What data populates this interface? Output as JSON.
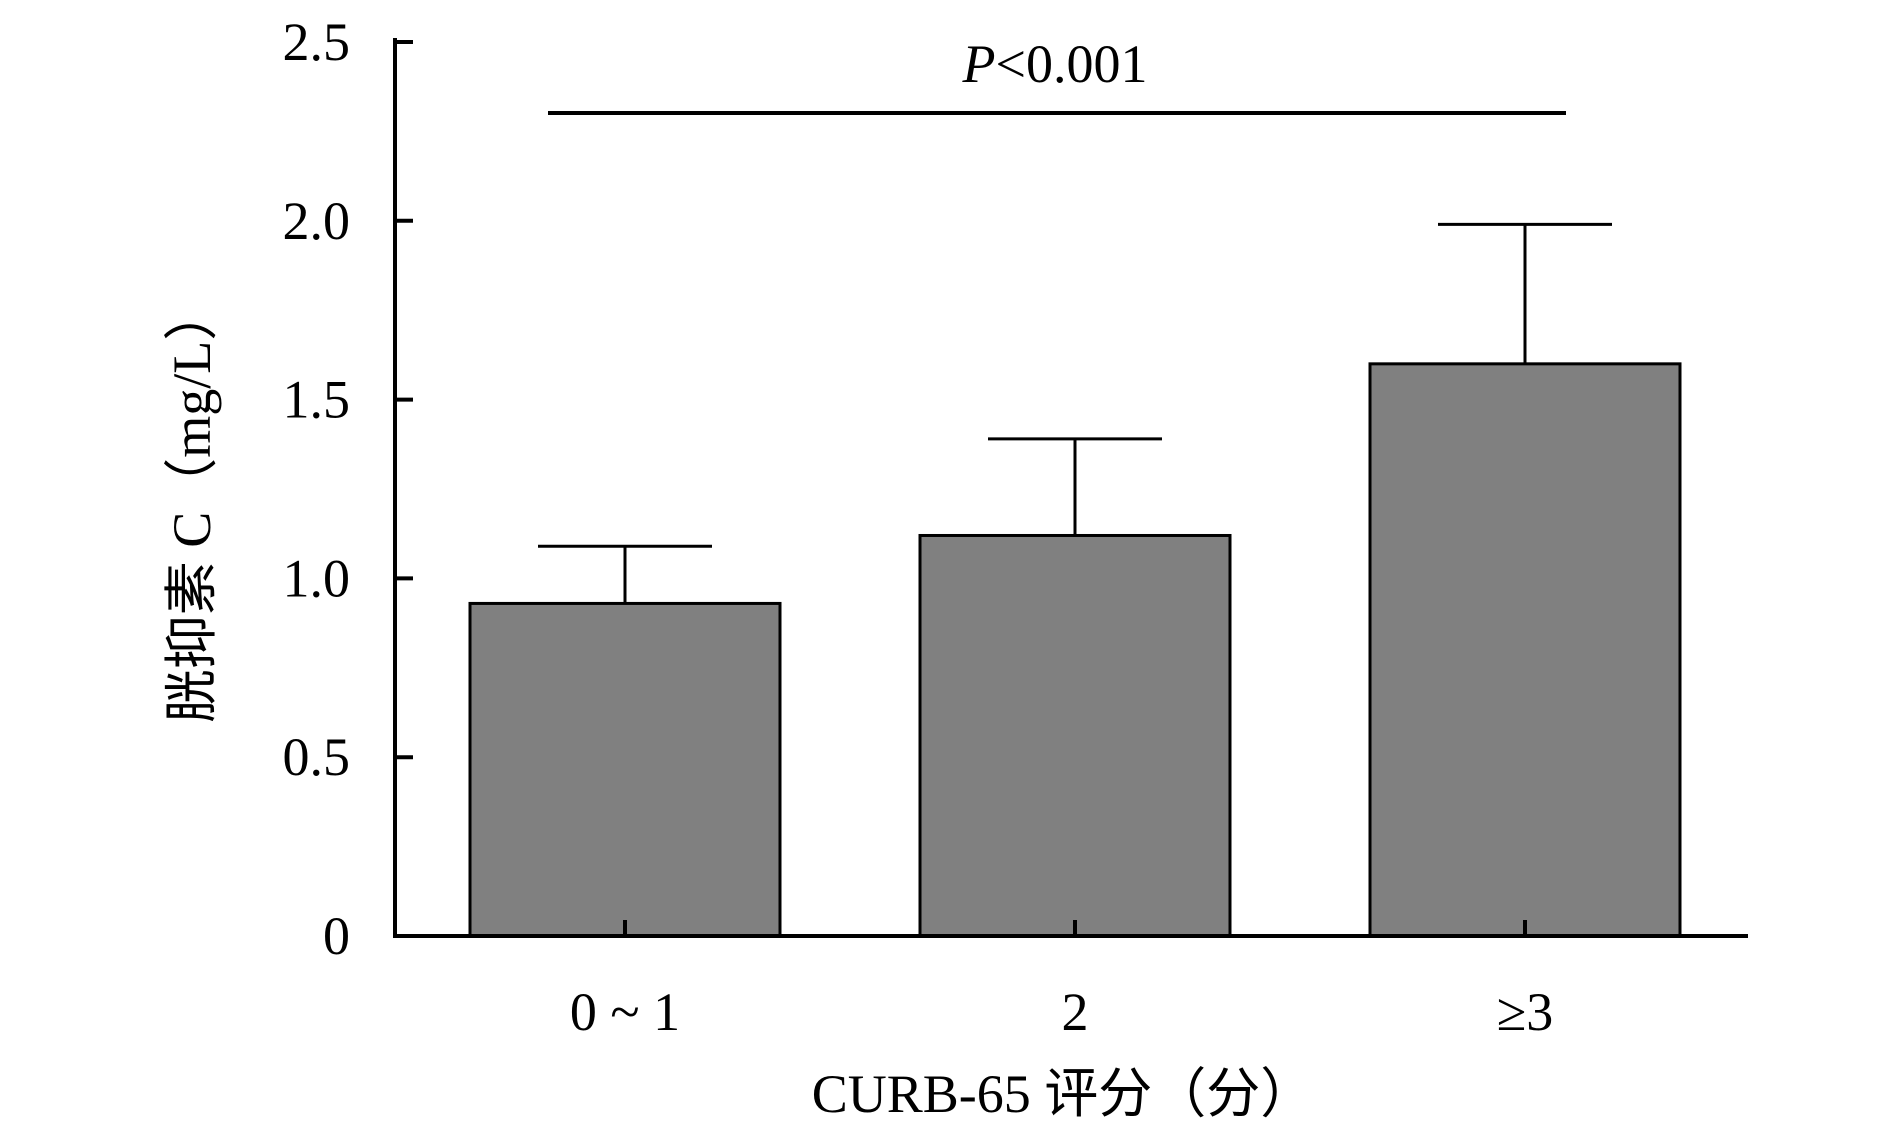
{
  "chart_data": {
    "type": "bar",
    "categories": [
      "0 ~ 1",
      "2",
      "≥3"
    ],
    "values": [
      0.93,
      1.12,
      1.6
    ],
    "errors": [
      0.16,
      0.27,
      0.39
    ],
    "ylim": [
      0,
      2.5
    ],
    "yticks": [
      0,
      0.5,
      1.0,
      1.5,
      2.0,
      2.5
    ],
    "ytick_labels": [
      "0",
      "0.5",
      "1.0",
      "1.5",
      "2.0",
      "2.5"
    ],
    "ylabel": "胱抑素 C（mg/L）",
    "xlabel": "CURB-65 评分（分）",
    "annotation": {
      "p_letter": "P",
      "p_rest": "<0.001"
    },
    "bar_color": "#808080",
    "grid": false
  }
}
